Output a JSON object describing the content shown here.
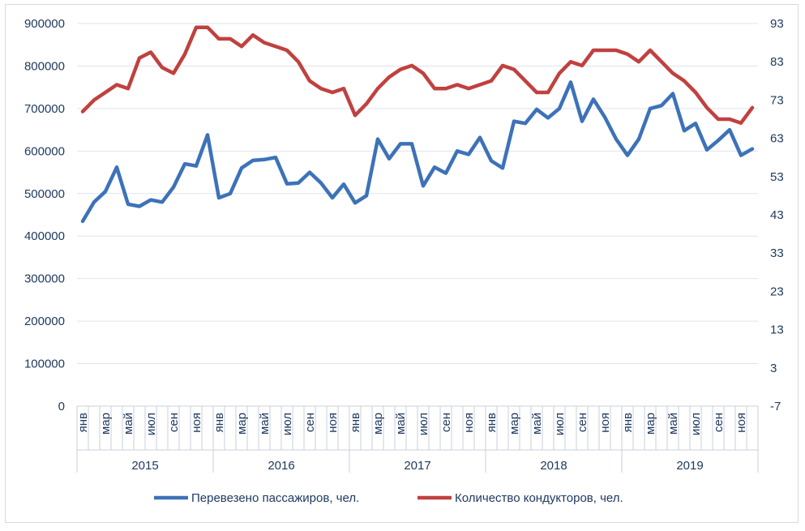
{
  "chart_data": {
    "type": "line",
    "title": "",
    "years": [
      "2015",
      "2016",
      "2017",
      "2018",
      "2019"
    ],
    "month_labels": [
      "янв",
      "",
      "мар",
      "",
      "май",
      "",
      "июл",
      "",
      "сен",
      "",
      "ноя",
      ""
    ],
    "left_axis": {
      "ylim": [
        0,
        900000
      ],
      "ticks": [
        "0",
        "100000",
        "200000",
        "300000",
        "400000",
        "500000",
        "600000",
        "700000",
        "800000",
        "900000"
      ]
    },
    "right_axis": {
      "ylim": [
        -7,
        93
      ],
      "ticks": [
        "-7",
        "3",
        "13",
        "23",
        "33",
        "43",
        "53",
        "63",
        "73",
        "83",
        "93"
      ]
    },
    "grid": true,
    "legend_position": "bottom",
    "series": [
      {
        "name": "Перевезено пассажиров, чел.",
        "axis": "left",
        "color": "#3d72b8",
        "values": [
          435000,
          480000,
          505000,
          562000,
          475000,
          470000,
          485000,
          480000,
          515000,
          570000,
          565000,
          638000,
          490000,
          500000,
          560000,
          578000,
          580000,
          585000,
          523000,
          525000,
          550000,
          525000,
          490000,
          522000,
          478000,
          495000,
          628000,
          582000,
          617000,
          617000,
          518000,
          562000,
          548000,
          600000,
          592000,
          632000,
          577000,
          560000,
          670000,
          665000,
          698000,
          678000,
          700000,
          762000,
          670000,
          722000,
          680000,
          628000,
          590000,
          628000,
          700000,
          707000,
          735000,
          648000,
          665000,
          603000,
          625000,
          650000,
          590000,
          605000
        ]
      },
      {
        "name": "Количество кондукторов, чел.",
        "axis": "right",
        "color": "#c0413f",
        "values": [
          70,
          73,
          75,
          77,
          76,
          84,
          85.5,
          81.5,
          80,
          85,
          92,
          92,
          89,
          89,
          87,
          90,
          88,
          87,
          86,
          83,
          78,
          76,
          75,
          76,
          69,
          72,
          76,
          79,
          81,
          82,
          80,
          76,
          76,
          77,
          76,
          77,
          78,
          82,
          81,
          78,
          75,
          75,
          80,
          83,
          82,
          86,
          86,
          86,
          85,
          83,
          86,
          83,
          80,
          78,
          75,
          71,
          68,
          68,
          67,
          71
        ]
      }
    ]
  }
}
